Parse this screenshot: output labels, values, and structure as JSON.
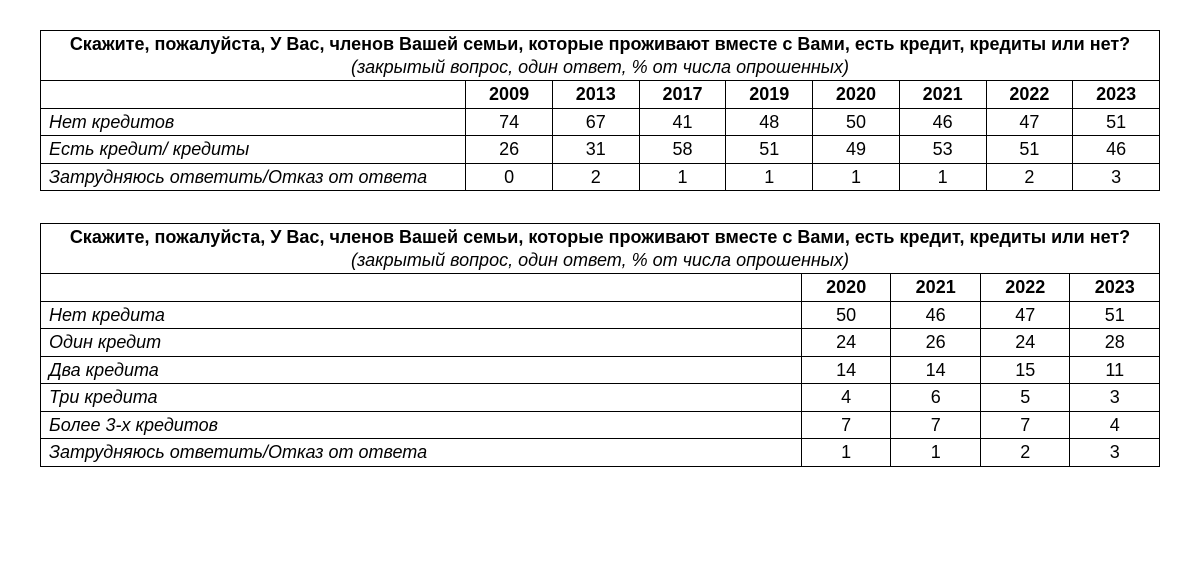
{
  "table1": {
    "title": "Скажите, пожалуйста, У Вас, членов Вашей семьи, которые проживают вместе с Вами, есть кредит, кредиты или нет?",
    "subtitle": "(закрытый вопрос, один ответ, % от числа опрошенных)",
    "years": [
      "2009",
      "2013",
      "2017",
      "2019",
      "2020",
      "2021",
      "2022",
      "2023"
    ],
    "rows": [
      {
        "label": "Нет кредитов",
        "values": [
          "74",
          "67",
          "41",
          "48",
          "50",
          "46",
          "47",
          "51"
        ]
      },
      {
        "label": "Есть кредит/ кредиты",
        "values": [
          "26",
          "31",
          "58",
          "51",
          "49",
          "53",
          "51",
          "46"
        ]
      },
      {
        "label": "Затрудняюсь ответить/Отказ от ответа",
        "values": [
          "0",
          "2",
          "1",
          "1",
          "1",
          "1",
          "2",
          "3"
        ]
      }
    ]
  },
  "table2": {
    "title": "Скажите, пожалуйста, У Вас, членов Вашей семьи, которые проживают вместе с Вами, есть кредит, кредиты или нет?",
    "subtitle": "(закрытый вопрос, один ответ, % от числа опрошенных)",
    "years": [
      "2020",
      "2021",
      "2022",
      "2023"
    ],
    "rows": [
      {
        "label": "Нет кредита",
        "values": [
          "50",
          "46",
          "47",
          "51"
        ]
      },
      {
        "label": "Один кредит",
        "values": [
          "24",
          "26",
          "24",
          "28"
        ]
      },
      {
        "label": "Два кредита",
        "values": [
          "14",
          "14",
          "15",
          "11"
        ]
      },
      {
        "label": "Три кредита",
        "values": [
          "4",
          "6",
          "5",
          "3"
        ]
      },
      {
        "label": "Более 3-х кредитов",
        "values": [
          "7",
          "7",
          "7",
          "4"
        ]
      },
      {
        "label": "Затрудняюсь ответить/Отказ от ответа",
        "values": [
          "1",
          "1",
          "2",
          "3"
        ]
      }
    ]
  },
  "style": {
    "font_family": "Arial",
    "base_font_size_pt": 14,
    "text_color": "#000000",
    "background_color": "#ffffff",
    "border_color": "#000000"
  }
}
